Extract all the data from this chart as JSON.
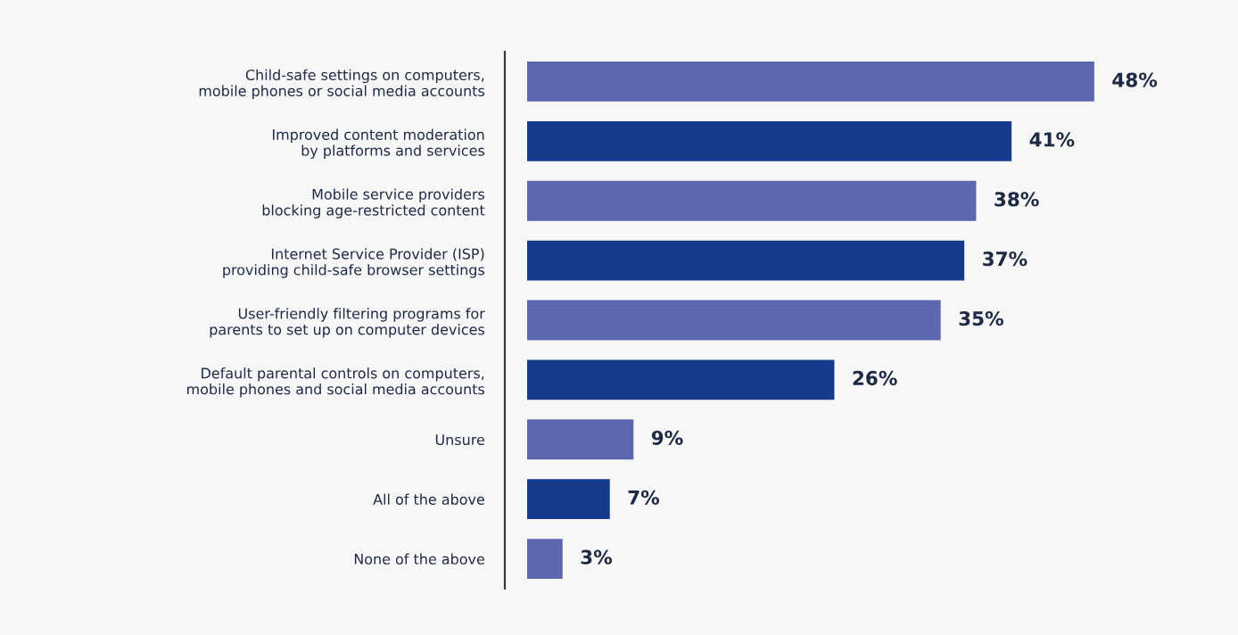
{
  "chart_data": {
    "type": "bar",
    "orientation": "horizontal",
    "categories": [
      "Child-safe settings on computers,\nmobile phones or social media accounts",
      "Improved content moderation\nby platforms and services",
      "Mobile service providers\nblocking age-restricted content",
      "Internet Service Provider (ISP)\nproviding child-safe browser settings",
      "User-friendly filtering programs for\nparents to set up on computer devices",
      "Default parental controls on computers,\nmobile phones and social media accounts",
      "Unsure",
      "All of the above",
      "None of the above"
    ],
    "values": [
      48,
      41,
      38,
      37,
      35,
      26,
      9,
      7,
      3
    ],
    "colors": [
      "#5c67b0",
      "#143b8c",
      "#5c67b0",
      "#143b8c",
      "#5c67b0",
      "#143b8c",
      "#5c67b0",
      "#143b8c",
      "#5c67b0"
    ],
    "value_labels": [
      "48%",
      "41%",
      "38%",
      "37%",
      "35%",
      "26%",
      "9%",
      "7%",
      "3%"
    ],
    "grid": false,
    "legend": false,
    "tick_labels": "y"
  }
}
